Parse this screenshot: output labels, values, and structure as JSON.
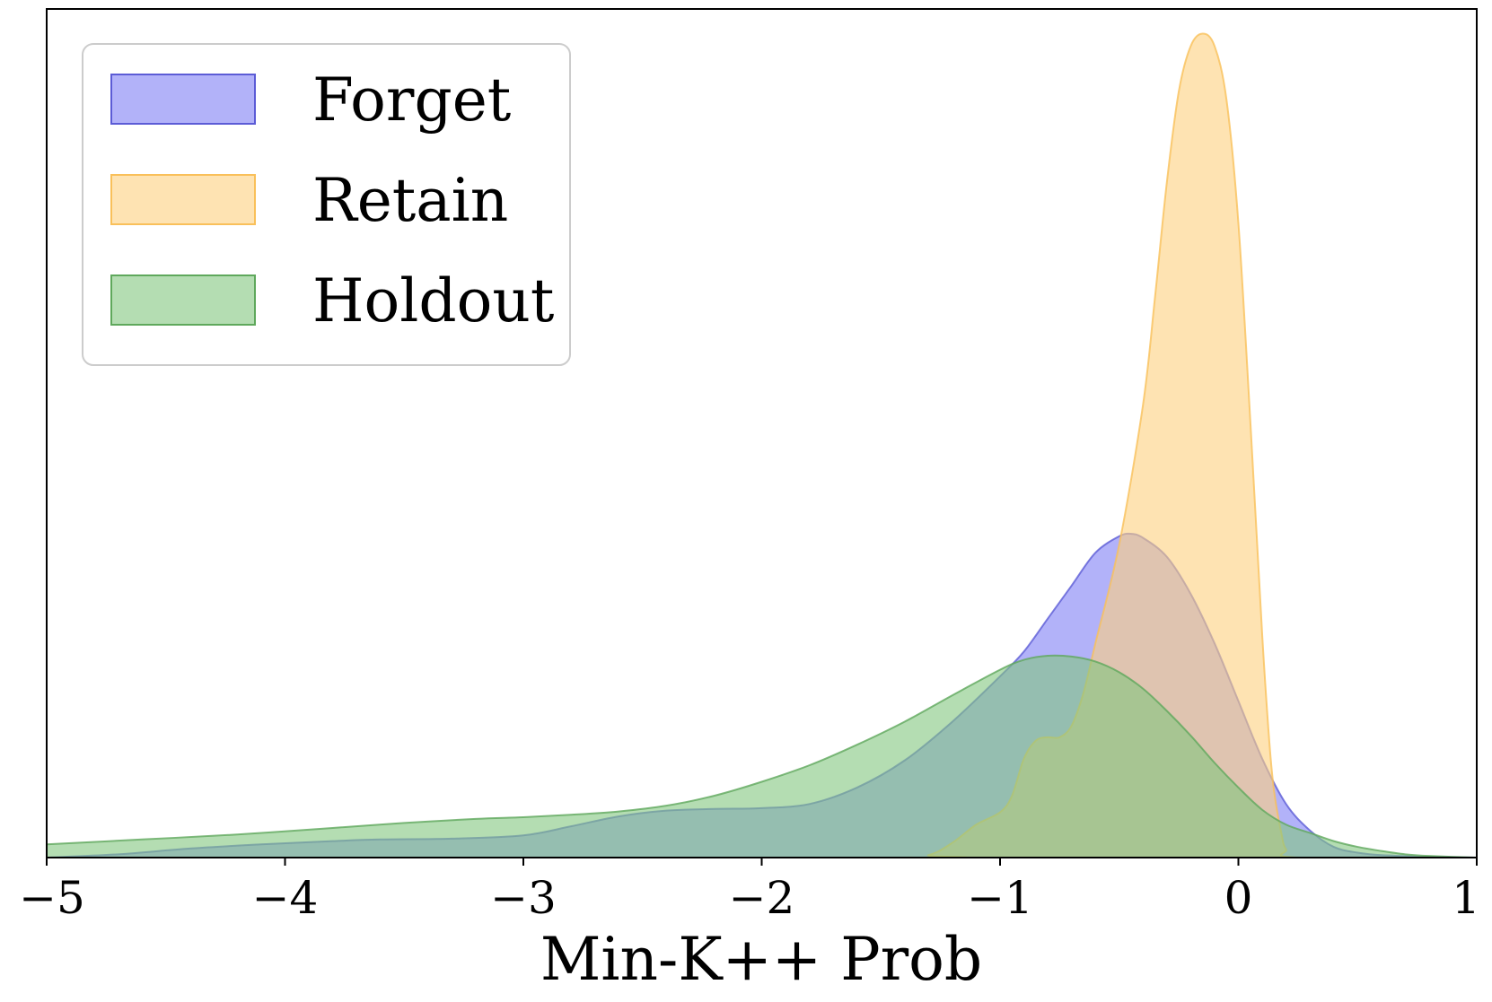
{
  "chart_data": {
    "type": "area",
    "xlabel": "Min-K++ Prob",
    "ylabel": "",
    "xlim": [
      -5,
      1
    ],
    "ylim": [
      0,
      1.03
    ],
    "x_ticks": [
      -5,
      -4,
      -3,
      -2,
      -1,
      0,
      1
    ],
    "x_tick_labels": [
      "−5",
      "−4",
      "−3",
      "−2",
      "−1",
      "0",
      "1"
    ],
    "y_ticks_visible": false,
    "grid": false,
    "legend": {
      "placement": "top-left",
      "entries": [
        "Forget",
        "Retain",
        "Holdout"
      ]
    },
    "series": [
      {
        "name": "Forget",
        "fill": "#7f7ff5",
        "edge": "#5c5cd6",
        "alpha": 0.6,
        "points": [
          [
            -5.0,
            0.0
          ],
          [
            -4.7,
            0.004
          ],
          [
            -4.4,
            0.011
          ],
          [
            -4.1,
            0.016
          ],
          [
            -3.8,
            0.02
          ],
          [
            -3.6,
            0.022
          ],
          [
            -3.3,
            0.023
          ],
          [
            -3.0,
            0.027
          ],
          [
            -2.8,
            0.038
          ],
          [
            -2.6,
            0.05
          ],
          [
            -2.4,
            0.057
          ],
          [
            -2.2,
            0.059
          ],
          [
            -2.0,
            0.06
          ],
          [
            -1.8,
            0.065
          ],
          [
            -1.6,
            0.085
          ],
          [
            -1.4,
            0.118
          ],
          [
            -1.2,
            0.165
          ],
          [
            -1.0,
            0.22
          ],
          [
            -0.9,
            0.25
          ],
          [
            -0.8,
            0.29
          ],
          [
            -0.7,
            0.33
          ],
          [
            -0.6,
            0.37
          ],
          [
            -0.5,
            0.39
          ],
          [
            -0.45,
            0.393
          ],
          [
            -0.4,
            0.388
          ],
          [
            -0.3,
            0.365
          ],
          [
            -0.2,
            0.32
          ],
          [
            -0.1,
            0.26
          ],
          [
            0.0,
            0.19
          ],
          [
            0.1,
            0.12
          ],
          [
            0.2,
            0.065
          ],
          [
            0.3,
            0.033
          ],
          [
            0.4,
            0.013
          ],
          [
            0.5,
            0.006
          ],
          [
            0.6,
            0.003
          ],
          [
            0.8,
            0.001
          ],
          [
            1.0,
            0.0
          ]
        ]
      },
      {
        "name": "Retain",
        "fill": "#fdd07e",
        "edge": "#f9c05a",
        "alpha": 0.6,
        "points": [
          [
            -5.0,
            0.0
          ],
          [
            -1.45,
            0.0
          ],
          [
            -1.3,
            0.003
          ],
          [
            -1.2,
            0.018
          ],
          [
            -1.1,
            0.04
          ],
          [
            -1.0,
            0.055
          ],
          [
            -0.95,
            0.075
          ],
          [
            -0.9,
            0.12
          ],
          [
            -0.85,
            0.142
          ],
          [
            -0.8,
            0.146
          ],
          [
            -0.75,
            0.146
          ],
          [
            -0.7,
            0.16
          ],
          [
            -0.65,
            0.2
          ],
          [
            -0.6,
            0.26
          ],
          [
            -0.5,
            0.38
          ],
          [
            -0.4,
            0.55
          ],
          [
            -0.35,
            0.68
          ],
          [
            -0.3,
            0.82
          ],
          [
            -0.25,
            0.93
          ],
          [
            -0.2,
            0.985
          ],
          [
            -0.15,
            1.0
          ],
          [
            -0.1,
            0.985
          ],
          [
            -0.05,
            0.92
          ],
          [
            0.0,
            0.77
          ],
          [
            0.05,
            0.53
          ],
          [
            0.1,
            0.27
          ],
          [
            0.13,
            0.14
          ],
          [
            0.15,
            0.08
          ],
          [
            0.18,
            0.03
          ],
          [
            0.2,
            0.01
          ],
          [
            0.25,
            0.0
          ],
          [
            1.0,
            0.0
          ]
        ]
      },
      {
        "name": "Holdout",
        "fill": "#82c77f",
        "edge": "#5fa85c",
        "alpha": 0.6,
        "points": [
          [
            -5.0,
            0.016
          ],
          [
            -4.6,
            0.022
          ],
          [
            -4.2,
            0.028
          ],
          [
            -3.8,
            0.036
          ],
          [
            -3.5,
            0.042
          ],
          [
            -3.2,
            0.047
          ],
          [
            -3.0,
            0.049
          ],
          [
            -2.8,
            0.052
          ],
          [
            -2.6,
            0.056
          ],
          [
            -2.4,
            0.063
          ],
          [
            -2.2,
            0.075
          ],
          [
            -2.0,
            0.092
          ],
          [
            -1.8,
            0.112
          ],
          [
            -1.6,
            0.137
          ],
          [
            -1.4,
            0.165
          ],
          [
            -1.2,
            0.197
          ],
          [
            -1.0,
            0.228
          ],
          [
            -0.9,
            0.24
          ],
          [
            -0.8,
            0.245
          ],
          [
            -0.7,
            0.244
          ],
          [
            -0.6,
            0.238
          ],
          [
            -0.5,
            0.225
          ],
          [
            -0.4,
            0.205
          ],
          [
            -0.3,
            0.178
          ],
          [
            -0.2,
            0.148
          ],
          [
            -0.1,
            0.115
          ],
          [
            0.0,
            0.085
          ],
          [
            0.1,
            0.058
          ],
          [
            0.2,
            0.04
          ],
          [
            0.3,
            0.03
          ],
          [
            0.4,
            0.02
          ],
          [
            0.5,
            0.013
          ],
          [
            0.6,
            0.008
          ],
          [
            0.7,
            0.004
          ],
          [
            0.8,
            0.002
          ],
          [
            1.0,
            0.0
          ]
        ]
      }
    ]
  }
}
